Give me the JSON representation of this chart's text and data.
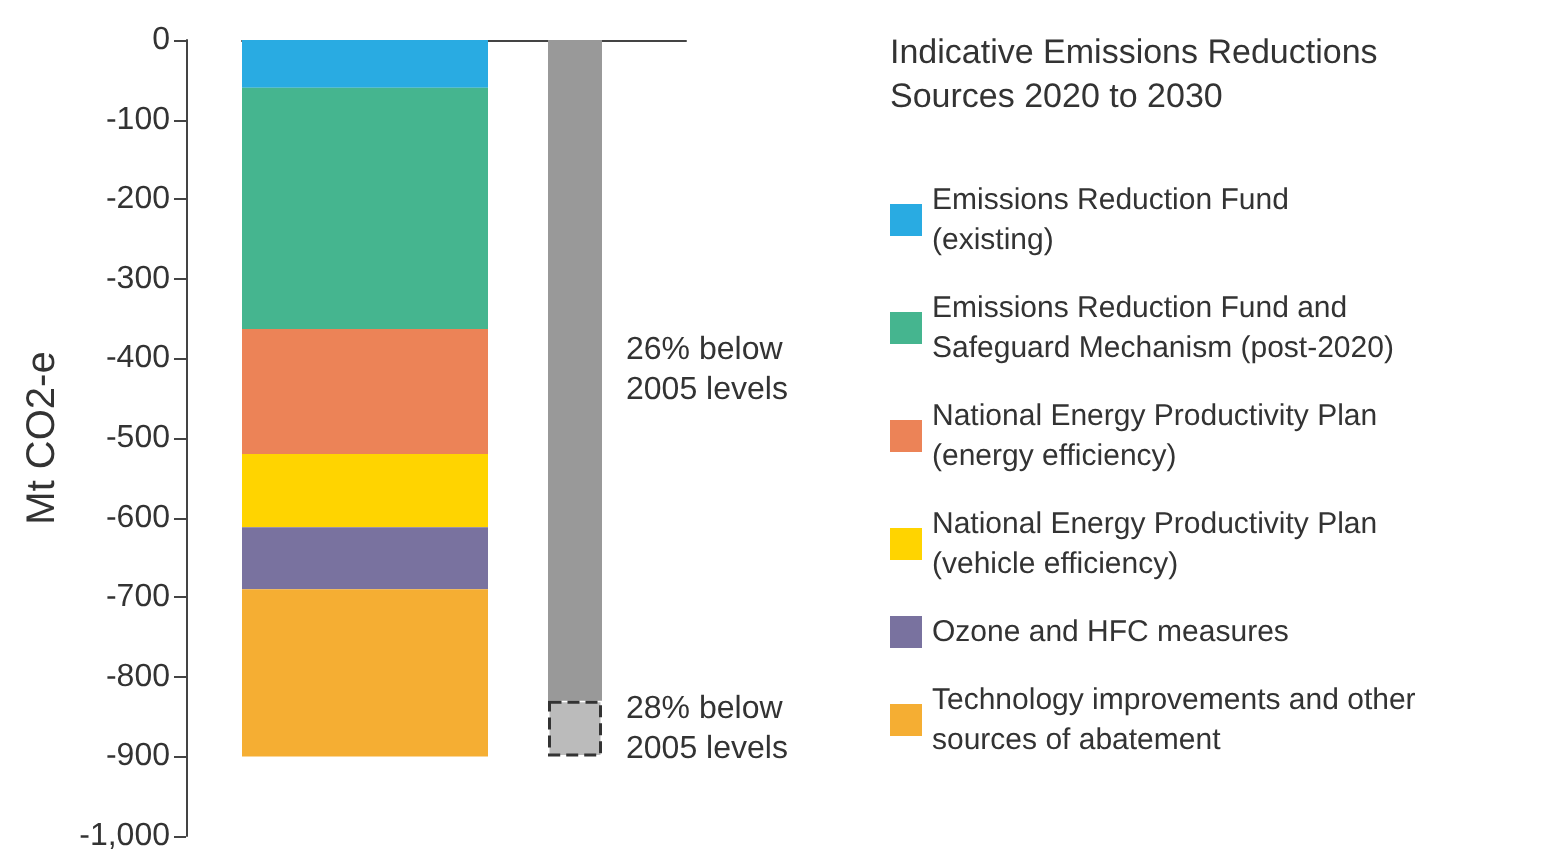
{
  "chart_data": {
    "type": "bar",
    "stacked": true,
    "legend_title": "Indicative Emissions Reductions Sources 2020 to 2030",
    "ylabel": "Mt CO2-e",
    "categories": [
      null,
      null
    ],
    "series": [
      {
        "name": "Emissions Reduction Fund\n(existing)",
        "color": "#29abe2",
        "values": [
          -60,
          null
        ]
      },
      {
        "name": "Emissions Reduction Fund and\nSafeguard Mechanism (post-2020)",
        "color": "#45b58f",
        "values": [
          -303,
          null
        ]
      },
      {
        "name": "National Energy Productivity Plan\n(energy efficiency)",
        "color": "#ec8357",
        "values": [
          -157,
          null
        ]
      },
      {
        "name": "National Energy Productivity Plan\n(vehicle efficiency)",
        "color": "#ffd400",
        "values": [
          -92,
          null
        ]
      },
      {
        "name": "Ozone and HFC measures",
        "color": "#79729f",
        "values": [
          -78,
          null
        ]
      },
      {
        "name": "Technology improvements and other\nsources of abatement",
        "color": "#f5ae33",
        "values": [
          -210,
          null
        ]
      },
      {
        "color": "#999999",
        "values": [
          null,
          -830
        ]
      },
      {
        "color": "#bbbbbb",
        "line_style": "dashed",
        "values": [
          null,
          -70
        ]
      }
    ],
    "annotations": [
      "26% below\n2005 levels",
      "28% below\n2005 levels"
    ],
    "ylim": [
      -1000,
      0
    ],
    "yticks": [
      0,
      -100,
      -200,
      -300,
      -400,
      -500,
      -600,
      -700,
      -800,
      -900,
      {
        "value": -1000,
        "label": "-1,000"
      }
    ],
    "grid": false,
    "legend": "right"
  }
}
